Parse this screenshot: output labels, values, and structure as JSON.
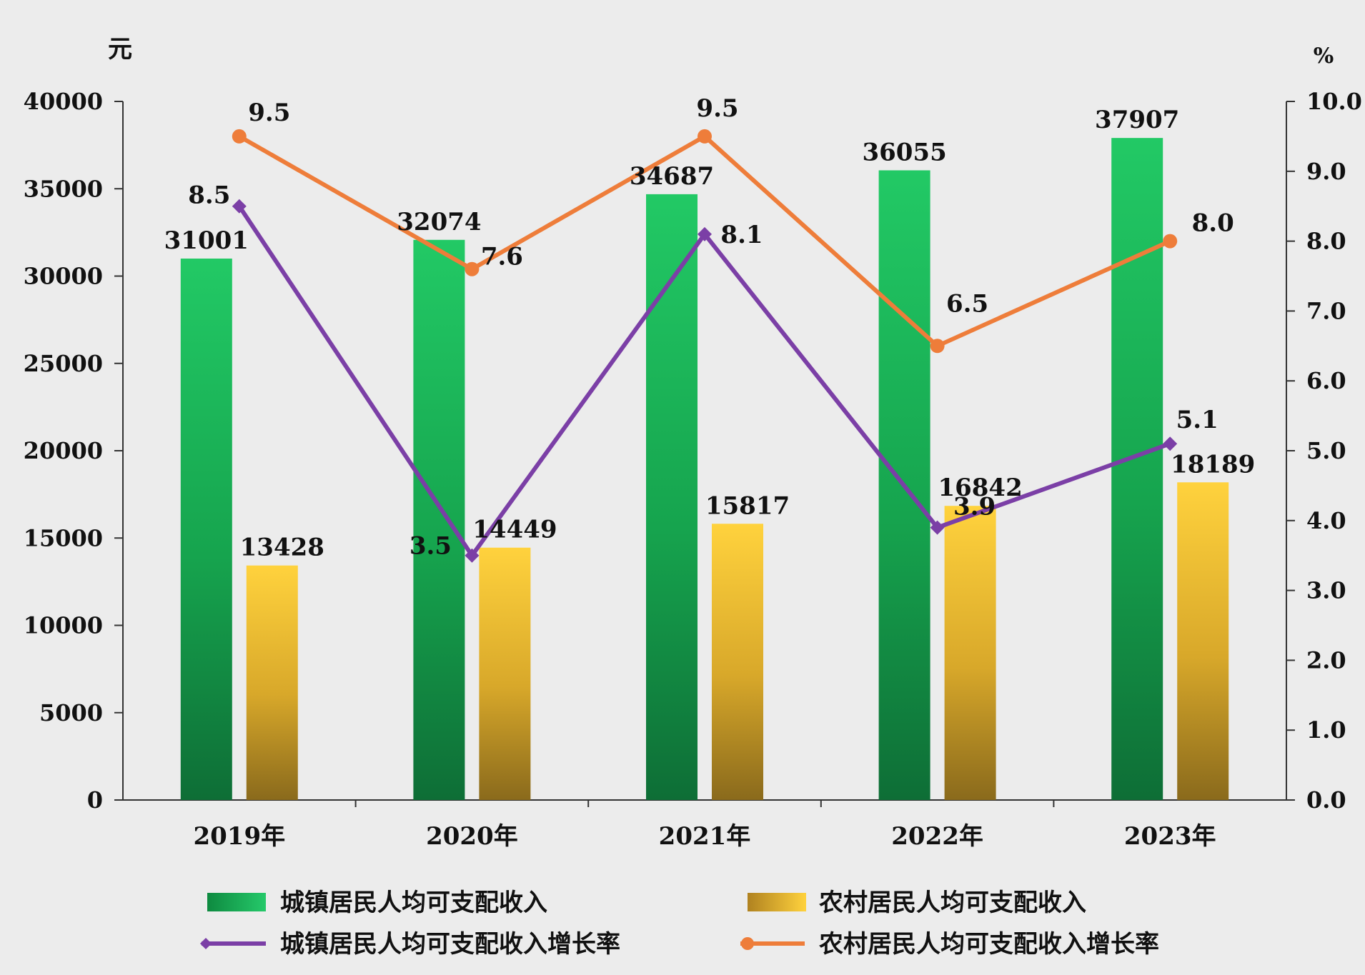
{
  "chart_data": {
    "type": "bar",
    "categories": [
      "2019年",
      "2020年",
      "2021年",
      "2022年",
      "2023年"
    ],
    "left_axis": {
      "unit": "元",
      "ylim": [
        0,
        40000
      ],
      "ticks": [
        "0",
        "5000",
        "10000",
        "15000",
        "20000",
        "25000",
        "30000",
        "35000",
        "40000"
      ]
    },
    "right_axis": {
      "unit": "%",
      "ylim": [
        0,
        10
      ],
      "ticks": [
        "0.0",
        "1.0",
        "2.0",
        "3.0",
        "4.0",
        "5.0",
        "6.0",
        "7.0",
        "8.0",
        "9.0",
        "10.0"
      ]
    },
    "bar_series": [
      {
        "name": "城镇居民人均可支配收入",
        "values": [
          31001,
          32074,
          34687,
          36055,
          37907
        ],
        "labels": [
          "31001",
          "32074",
          "34687",
          "36055",
          "37907"
        ],
        "color": "#1aa84f"
      },
      {
        "name": "农村居民人均可支配收入",
        "values": [
          13428,
          14449,
          15817,
          16842,
          18189
        ],
        "labels": [
          "13428",
          "14449",
          "15817",
          "16842",
          "18189"
        ],
        "color": "#f2c12e"
      }
    ],
    "line_series": [
      {
        "name": "城镇居民人均可支配收入增长率",
        "values": [
          8.5,
          3.5,
          8.1,
          3.9,
          5.1
        ],
        "labels": [
          "8.5",
          "3.5",
          "8.1",
          "3.9",
          "5.1"
        ],
        "color": "#7b3fa6",
        "marker": "diamond"
      },
      {
        "name": "农村居民人均可支配收入增长率",
        "values": [
          9.5,
          7.6,
          9.5,
          6.5,
          8.0
        ],
        "labels": [
          "9.5",
          "7.6",
          "9.5",
          "6.5",
          "8.0"
        ],
        "color": "#ee7d3a",
        "marker": "circle"
      }
    ],
    "grid": false,
    "legend_position": "bottom"
  }
}
